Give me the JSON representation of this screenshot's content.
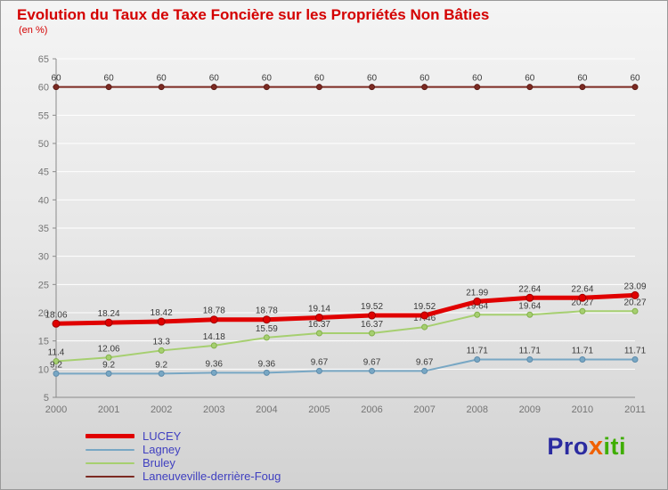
{
  "title": "Evolution du Taux de Taxe Foncière sur les Propriétés Non Bâties",
  "subtitle": "(en %)",
  "colors": {
    "title": "#d40000",
    "axis_text": "#757575",
    "axis_line": "#8a8a8a",
    "grid_line": "#ffffff",
    "point_label": "#3a3a3a",
    "legend_text": "#4040c0",
    "logo_pro": "#2b2ba0",
    "logo_x": "#f06000",
    "logo_iti": "#3fae00"
  },
  "chart_data": {
    "type": "line",
    "x": [
      "2000",
      "2001",
      "2002",
      "2003",
      "2004",
      "2005",
      "2006",
      "2007",
      "2008",
      "2009",
      "2010",
      "2011"
    ],
    "ylim": [
      5,
      65
    ],
    "ytick_step": 5,
    "grid": "horizontal-white",
    "legend_position": "bottom-left",
    "title": "Evolution du Taux de Taxe Foncière sur les Propriétés Non Bâties",
    "ylabel": "en %",
    "series": [
      {
        "name": "LUCEY",
        "color": "#e00000",
        "marker_color": "#9e0000",
        "line_width": 5,
        "values": [
          18.06,
          18.24,
          18.42,
          18.78,
          18.78,
          19.14,
          19.52,
          19.52,
          21.99,
          22.64,
          22.64,
          23.09
        ]
      },
      {
        "name": "Lagney",
        "color": "#78a7c4",
        "marker_color": "#5d8bab",
        "line_width": 2,
        "values": [
          9.2,
          9.2,
          9.2,
          9.36,
          9.36,
          9.67,
          9.67,
          9.67,
          11.71,
          11.71,
          11.71,
          11.71
        ]
      },
      {
        "name": "Bruley",
        "color": "#a6cf70",
        "marker_color": "#83b14b",
        "line_width": 2,
        "values": [
          11.4,
          12.06,
          13.3,
          14.18,
          15.59,
          16.37,
          16.37,
          17.46,
          19.64,
          19.64,
          20.27,
          20.27
        ]
      },
      {
        "name": "Laneuveville-derrière-Foug",
        "color": "#7c2a22",
        "marker_color": "#5d1d17",
        "line_width": 2,
        "values": [
          60,
          60,
          60,
          60,
          60,
          60,
          60,
          60,
          60,
          60,
          60,
          60
        ]
      }
    ]
  },
  "logo": {
    "parts": [
      {
        "text": "Pro"
      },
      {
        "text": "x"
      },
      {
        "text": "iti"
      }
    ]
  }
}
